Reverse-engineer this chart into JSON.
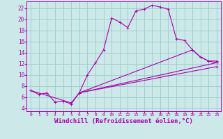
{
  "background_color": "#cce8e8",
  "line_color": "#aa00aa",
  "grid_color": "#99cccc",
  "xlabel": "Windchill (Refroidissement éolien,°C)",
  "xlabel_fontsize": 6.5,
  "yticks": [
    4,
    6,
    8,
    10,
    12,
    14,
    16,
    18,
    20,
    22
  ],
  "xticks": [
    0,
    1,
    2,
    3,
    4,
    5,
    6,
    7,
    8,
    9,
    10,
    11,
    12,
    13,
    14,
    15,
    16,
    17,
    18,
    19,
    20,
    21,
    22,
    23
  ],
  "xlim": [
    -0.5,
    23.5
  ],
  "ylim": [
    3.5,
    23.2
  ],
  "curves": [
    {
      "x": [
        0,
        1,
        2,
        3,
        4,
        5,
        6,
        7,
        8,
        9,
        10,
        11,
        12,
        13,
        14,
        15,
        16,
        17,
        18,
        19,
        20,
        21,
        22,
        23
      ],
      "y": [
        7.2,
        6.5,
        6.8,
        5.1,
        5.3,
        4.8,
        6.8,
        10.0,
        12.2,
        14.5,
        20.2,
        19.5,
        18.5,
        21.5,
        21.8,
        22.5,
        22.2,
        21.8,
        16.5,
        16.2,
        14.5,
        13.2,
        12.5,
        12.2
      ]
    },
    {
      "x": [
        0,
        5,
        6,
        20,
        21,
        22,
        23
      ],
      "y": [
        7.2,
        5.0,
        6.8,
        14.5,
        13.2,
        12.5,
        12.5
      ]
    },
    {
      "x": [
        6,
        23
      ],
      "y": [
        6.8,
        12.2
      ]
    },
    {
      "x": [
        6,
        23
      ],
      "y": [
        6.8,
        11.5
      ]
    }
  ]
}
